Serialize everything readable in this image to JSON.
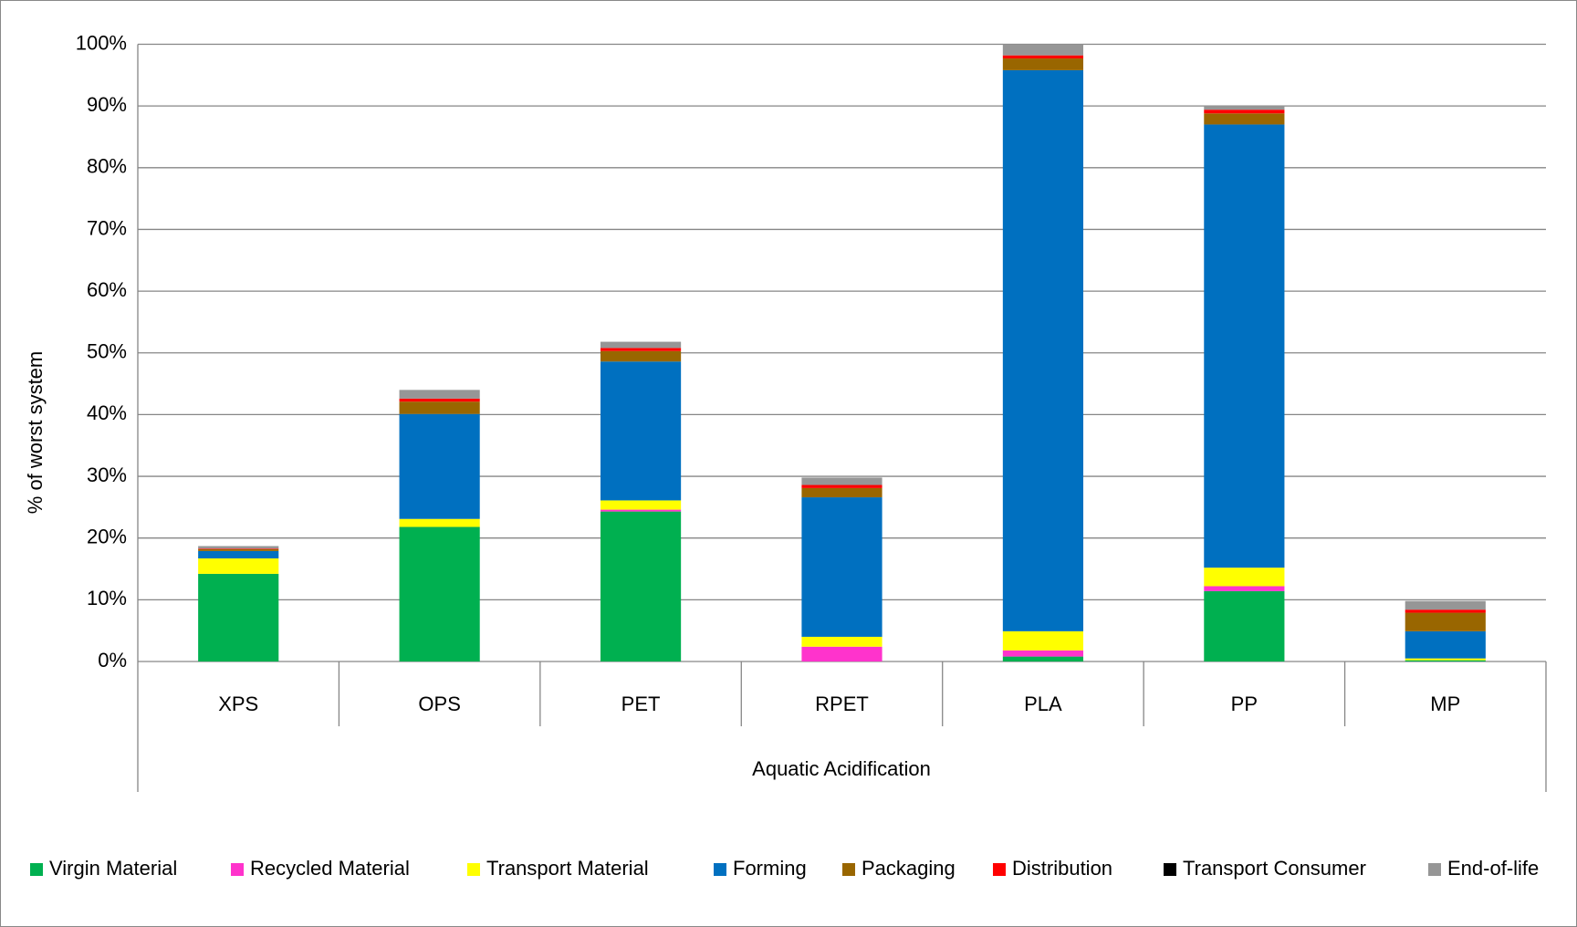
{
  "chart_data": {
    "type": "stacked_bar",
    "y_label": "% of worst system",
    "x_label": "Aquatic Acidification",
    "categories": [
      "XPS",
      "OPS",
      "PET",
      "RPET",
      "PLA",
      "PP",
      "MP"
    ],
    "series": [
      {
        "name": "Virgin Material",
        "color": "#00b050",
        "values": [
          14.2,
          21.8,
          24.3,
          0,
          0.8,
          11.4,
          0.2
        ]
      },
      {
        "name": "Recycled Material",
        "color": "#ff33cc",
        "values": [
          0,
          0,
          0.3,
          2.4,
          1.0,
          0.8,
          0
        ]
      },
      {
        "name": "Transport Material",
        "color": "#ffff00",
        "values": [
          2.5,
          1.3,
          1.5,
          1.6,
          3.1,
          3.0,
          0.3
        ]
      },
      {
        "name": "Forming",
        "color": "#0070c0",
        "values": [
          1.2,
          17.0,
          22.5,
          22.6,
          90.9,
          71.8,
          4.4
        ]
      },
      {
        "name": "Packaging",
        "color": "#996600",
        "values": [
          0.3,
          2.0,
          1.7,
          1.5,
          1.9,
          1.8,
          3.0
        ]
      },
      {
        "name": "Distribution",
        "color": "#ff0000",
        "values": [
          0.1,
          0.5,
          0.5,
          0.5,
          0.5,
          0.6,
          0.5
        ]
      },
      {
        "name": "Transport Consumer",
        "color": "#000000",
        "values": [
          0,
          0,
          0,
          0,
          0,
          0,
          0
        ]
      },
      {
        "name": "End-of-life",
        "color": "#969696",
        "values": [
          0.4,
          1.4,
          1.0,
          1.2,
          1.8,
          0.6,
          1.4
        ]
      }
    ],
    "ylim": [
      0,
      100
    ],
    "yticks": [
      {
        "value": 0,
        "label": "0%"
      },
      {
        "value": 10,
        "label": "10%"
      },
      {
        "value": 20,
        "label": "20%"
      },
      {
        "value": 30,
        "label": "30%"
      },
      {
        "value": 40,
        "label": "40%"
      },
      {
        "value": 50,
        "label": "50%"
      },
      {
        "value": 60,
        "label": "60%"
      },
      {
        "value": 70,
        "label": "70%"
      },
      {
        "value": 80,
        "label": "80%"
      },
      {
        "value": 90,
        "label": "90%"
      },
      {
        "value": 100,
        "label": "100%"
      }
    ],
    "grid": true,
    "legend": "bottom"
  }
}
